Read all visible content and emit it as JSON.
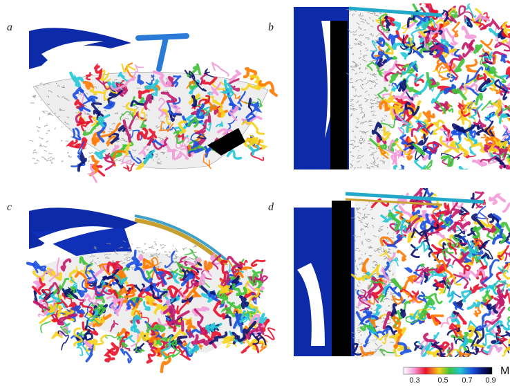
{
  "panels": [
    {
      "label": "a"
    },
    {
      "label": "b"
    },
    {
      "label": "c"
    },
    {
      "label": "d"
    }
  ],
  "colorbar": {
    "label": "M",
    "ticks": [
      "0.3",
      "0.5",
      "0.7",
      "0.9"
    ]
  }
}
